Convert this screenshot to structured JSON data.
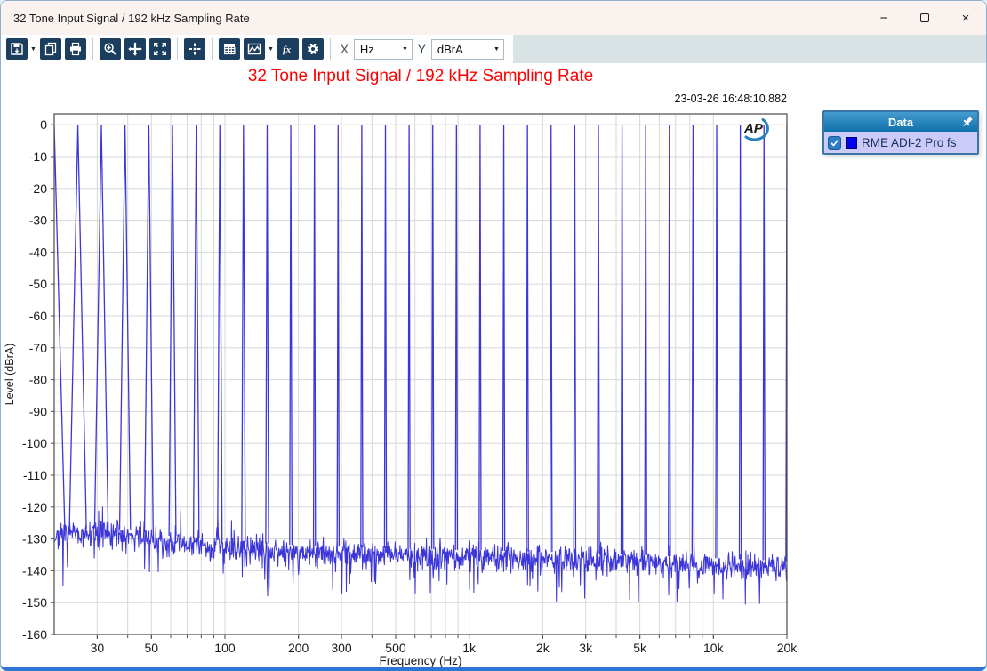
{
  "window": {
    "title": "32 Tone Input Signal / 192 kHz Sampling Rate",
    "controls": {
      "minimize": "−",
      "maximize": "maximize-icon",
      "close": "×"
    }
  },
  "toolbar": {
    "icons": [
      "save-icon",
      "copy-icon",
      "print-icon",
      "zoom-icon",
      "pan-icon",
      "fit-icon",
      "cursor-icon",
      "table-icon",
      "graph-icon",
      "fx-icon",
      "settings-icon"
    ],
    "x_selector": {
      "label": "X",
      "value": "Hz"
    },
    "y_selector": {
      "label": "Y",
      "value": "dBrA"
    }
  },
  "graph": {
    "title": "32 Tone Input Signal / 192 kHz Sampling Rate",
    "title_color": "#ff0000",
    "timestamp": "23-03-26 16:48:10.882",
    "logo": "AP"
  },
  "legend": {
    "header": "Data",
    "pin_icon": "pin-icon",
    "series": [
      {
        "label": "RME ADI-2 Pro fs",
        "checked": true,
        "swatch_color": "#0000f2"
      }
    ]
  },
  "chart_data": {
    "type": "line",
    "title": "32 Tone Input Signal / 192 kHz Sampling Rate",
    "xlabel": "Frequency (Hz)",
    "ylabel": "Level (dBrA)",
    "x_scale": "log",
    "xlim": [
      20,
      20000
    ],
    "ylim": [
      -160,
      3.4
    ],
    "grid": true,
    "legend_position": "top-right",
    "trace_color": "#3c35d8",
    "grid_color": "#d7d7d7",
    "frame_color": "#4a4a4a",
    "series_name": "RME ADI-2 Pro fs",
    "y_ticks": [
      0,
      -10,
      -20,
      -30,
      -40,
      -50,
      -60,
      -70,
      -80,
      -90,
      -100,
      -110,
      -120,
      -130,
      -140,
      -150,
      -160
    ],
    "x_ticks": [
      {
        "v": 30,
        "label": "30"
      },
      {
        "v": 50,
        "label": "50"
      },
      {
        "v": 100,
        "label": "100"
      },
      {
        "v": 200,
        "label": "200"
      },
      {
        "v": 300,
        "label": "300"
      },
      {
        "v": 500,
        "label": "500"
      },
      {
        "v": 1000,
        "label": "1k"
      },
      {
        "v": 2000,
        "label": "2k"
      },
      {
        "v": 3000,
        "label": "3k"
      },
      {
        "v": 5000,
        "label": "5k"
      },
      {
        "v": 10000,
        "label": "10k"
      },
      {
        "v": 20000,
        "label": "20k"
      }
    ],
    "x_gridlines": [
      30,
      40,
      50,
      60,
      70,
      80,
      90,
      100,
      200,
      300,
      400,
      500,
      600,
      700,
      800,
      900,
      1000,
      2000,
      3000,
      4000,
      5000,
      6000,
      7000,
      8000,
      9000,
      10000,
      20000
    ],
    "tone_level_db": -0.3,
    "tones_hz": [
      20,
      25,
      31.2,
      39,
      48.8,
      61,
      76.3,
      95.3,
      119.1,
      148.9,
      186.1,
      232.6,
      290.7,
      363.4,
      454.2,
      567.7,
      709.6,
      886.9,
      1108.4,
      1385.5,
      1731.7,
      2164.5,
      2705.4,
      3381.5,
      4226.5,
      5282.6,
      6602.7,
      8252.7,
      10315,
      12892.7,
      16114.7,
      20000
    ],
    "noise_floor_db": [
      [
        20,
        -129
      ],
      [
        35,
        -128.5
      ],
      [
        60,
        -131
      ],
      [
        100,
        -132.5
      ],
      [
        200,
        -134
      ],
      [
        500,
        -135
      ],
      [
        1000,
        -135.5
      ],
      [
        2000,
        -136
      ],
      [
        5000,
        -137
      ],
      [
        10000,
        -138
      ],
      [
        20000,
        -139
      ]
    ],
    "noise_jitter_db": 13
  }
}
